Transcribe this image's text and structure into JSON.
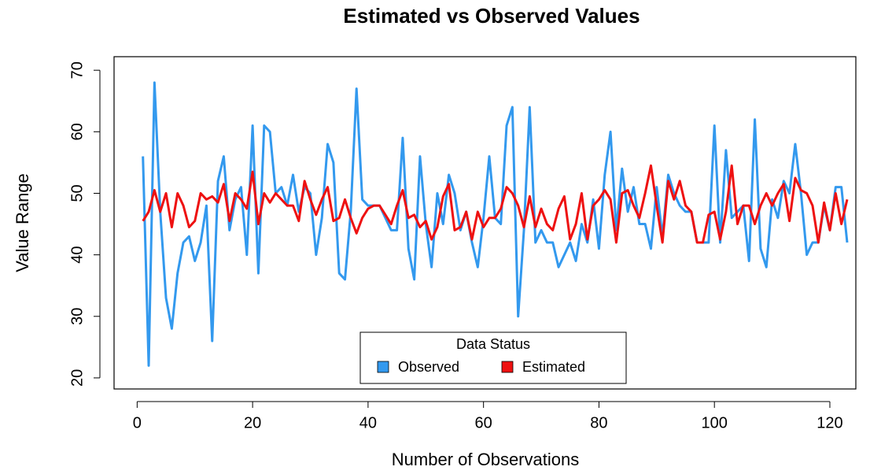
{
  "chart_data": {
    "type": "line",
    "title": "Estimated vs Observed Values",
    "x_label": "Number of Observations",
    "y_label": "Value Range",
    "x": [
      1,
      2,
      3,
      4,
      5,
      6,
      7,
      8,
      9,
      10,
      11,
      12,
      13,
      14,
      15,
      16,
      17,
      18,
      19,
      20,
      21,
      22,
      23,
      24,
      25,
      26,
      27,
      28,
      29,
      30,
      31,
      32,
      33,
      34,
      35,
      36,
      37,
      38,
      39,
      40,
      41,
      42,
      43,
      44,
      45,
      46,
      47,
      48,
      49,
      50,
      51,
      52,
      53,
      54,
      55,
      56,
      57,
      58,
      59,
      60,
      61,
      62,
      63,
      64,
      65,
      66,
      67,
      68,
      69,
      70,
      71,
      72,
      73,
      74,
      75,
      76,
      77,
      78,
      79,
      80,
      81,
      82,
      83,
      84,
      85,
      86,
      87,
      88,
      89,
      90,
      91,
      92,
      93,
      94,
      95,
      96,
      97,
      98,
      99,
      100,
      101,
      102,
      103,
      104,
      105,
      106,
      107,
      108,
      109,
      110,
      111,
      112,
      113,
      114,
      115,
      116,
      117,
      118,
      119,
      120,
      121,
      122,
      123
    ],
    "series": [
      {
        "name": "Observed",
        "color": "#3399ee",
        "values": [
          56,
          22,
          68,
          47,
          33,
          28,
          37,
          42,
          43,
          39,
          42,
          48,
          26,
          52,
          56,
          44,
          49,
          51,
          40,
          61,
          37,
          61,
          60,
          50,
          51,
          48,
          53,
          47,
          51,
          50,
          40,
          46,
          58,
          55,
          37,
          36,
          47,
          67,
          49,
          48,
          48,
          48,
          46,
          44,
          44,
          59,
          41,
          36,
          56,
          45,
          38,
          50,
          45,
          53,
          50,
          44,
          47,
          42,
          38,
          46,
          56,
          46,
          45,
          61,
          64,
          30,
          44,
          64,
          42,
          44,
          42,
          42,
          38,
          40,
          42,
          39,
          45,
          42,
          49,
          41,
          53,
          60,
          44,
          54,
          47,
          51,
          45,
          45,
          41,
          51,
          43,
          53,
          50,
          48,
          47,
          47,
          42,
          42,
          42,
          61,
          42,
          57,
          46,
          47,
          48,
          39,
          62,
          41,
          38,
          49,
          46,
          52,
          50,
          58,
          50,
          40,
          42,
          42,
          48,
          44,
          51,
          51,
          42
        ]
      },
      {
        "name": "Estimated",
        "color": "#ee1111",
        "values": [
          45.5,
          47,
          50.5,
          47,
          50,
          44.5,
          50,
          48,
          44.5,
          45.5,
          50,
          49,
          49.5,
          48.5,
          51.5,
          45.5,
          50,
          49,
          47.5,
          53.5,
          45,
          50,
          48.5,
          50,
          49,
          48,
          48,
          45.5,
          52,
          49,
          46.5,
          49,
          51,
          45.5,
          46,
          49,
          46,
          43.5,
          46,
          47.5,
          48,
          48,
          46.5,
          45,
          48,
          50.5,
          46,
          46.5,
          44.5,
          45.5,
          42.5,
          44.5,
          49.5,
          51.5,
          44,
          44.5,
          47,
          42.5,
          47,
          44.5,
          46,
          46,
          47.5,
          51,
          50,
          48,
          44.5,
          49.5,
          44.5,
          47.5,
          45,
          44,
          47.5,
          49.5,
          42.5,
          45,
          50,
          42.5,
          48,
          49,
          50.5,
          49,
          42,
          50,
          50.5,
          48,
          46,
          50,
          54.5,
          48,
          42,
          52,
          49,
          52,
          48,
          47,
          42,
          42,
          46.5,
          47,
          42.5,
          47,
          54.5,
          45,
          48,
          48,
          45,
          48,
          50,
          48,
          50,
          51.5,
          45.5,
          52.5,
          50.5,
          50,
          48,
          42,
          48.5,
          44,
          50,
          45,
          49
        ]
      }
    ],
    "xlim": [
      -4,
      124.5
    ],
    "ylim": [
      18.2,
      72.2
    ],
    "xticks": [
      0,
      20,
      40,
      60,
      80,
      100,
      120
    ],
    "yticks": [
      20,
      30,
      40,
      50,
      60,
      70
    ],
    "legend_title": "Data Status",
    "legend_position": "bottom"
  }
}
